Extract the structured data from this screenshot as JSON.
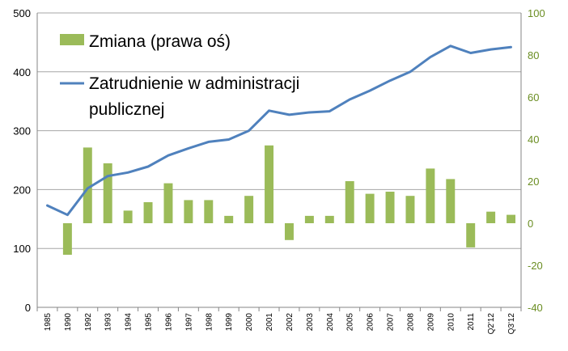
{
  "chart_data": {
    "type": "bar+line",
    "categories": [
      "1985",
      "1990",
      "1992",
      "1993",
      "1994",
      "1995",
      "1996",
      "1997",
      "1998",
      "1999",
      "2000",
      "2001",
      "2002",
      "2003",
      "2004",
      "2005",
      "2006",
      "2007",
      "2008",
      "2009",
      "2010",
      "2011",
      "Q2'12",
      "Q3'12"
    ],
    "series": [
      {
        "name": "Zmiana (prawa oś)",
        "type": "bar",
        "axis": "right",
        "color": "#9bbb59",
        "values": [
          null,
          -15,
          36,
          28.5,
          6,
          10,
          19,
          11,
          11,
          3.5,
          13,
          37,
          -8,
          3.5,
          3.5,
          20,
          14,
          15,
          13,
          26,
          21,
          -11.5,
          5.5,
          4
        ]
      },
      {
        "name": "Zatrudnienie w administracji publicznej",
        "type": "line",
        "axis": "left",
        "color": "#4f81bd",
        "values": [
          173,
          157,
          202,
          223,
          229,
          239,
          258,
          270,
          281,
          285,
          300,
          334,
          327,
          331,
          333,
          353,
          368,
          385,
          400,
          425,
          444,
          432,
          438,
          442
        ]
      }
    ],
    "y_left": {
      "min": 0,
      "max": 500,
      "ticks": [
        0,
        100,
        200,
        300,
        400,
        500
      ]
    },
    "y_right": {
      "min": -40,
      "max": 100,
      "ticks": [
        -40,
        -20,
        0,
        20,
        40,
        60,
        80,
        100
      ]
    },
    "grid": true,
    "legend": {
      "placement": "top-left",
      "bar_label": "Zmiana (prawa oś)",
      "line_label_1": "Zatrudnienie w administracji",
      "line_label_2": "publicznej"
    }
  }
}
